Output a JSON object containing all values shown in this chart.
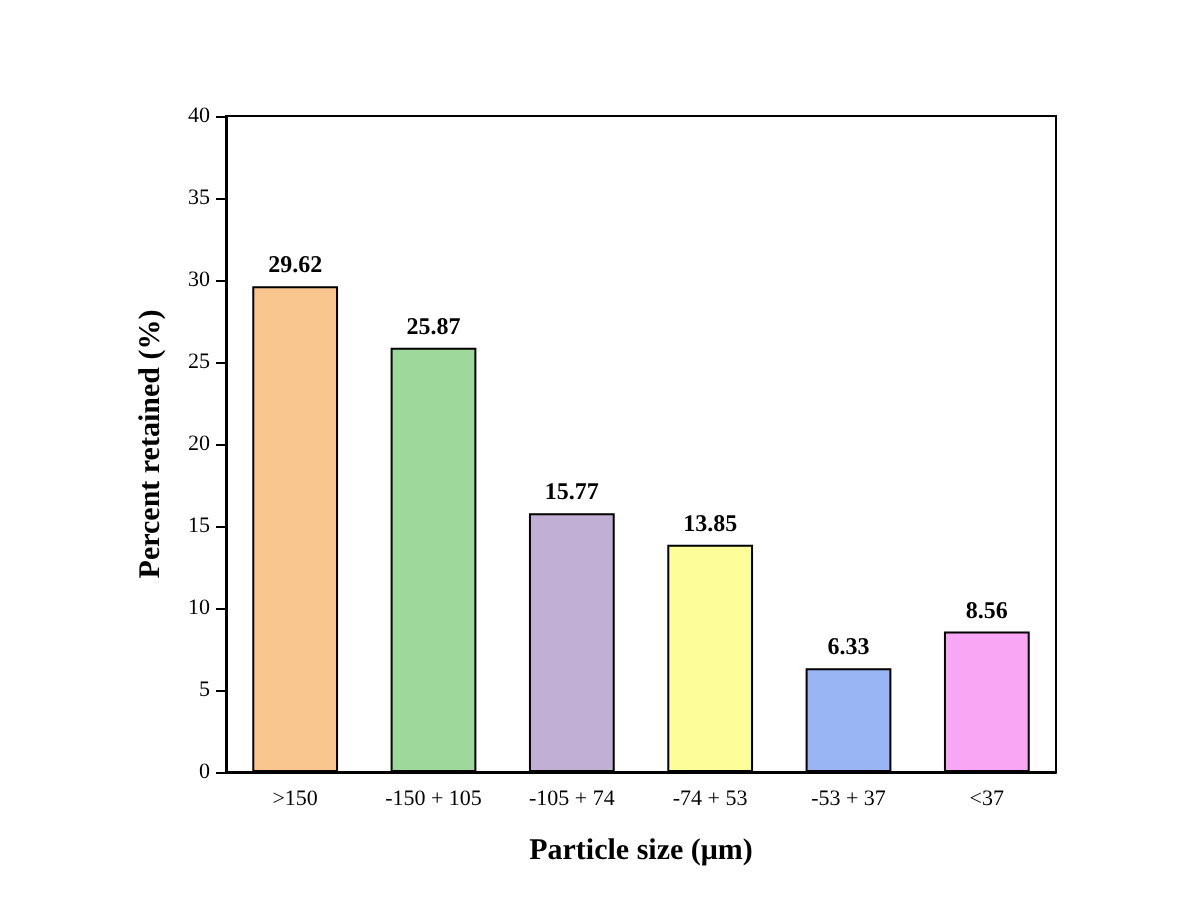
{
  "chart_data": {
    "type": "bar",
    "xlabel": "Particle size (μm)",
    "ylabel": "Percent retained (%)",
    "categories": [
      ">150",
      "-150 + 105",
      "-105 + 74",
      "-74 + 53",
      "-53 + 37",
      "<37"
    ],
    "values": [
      29.62,
      25.87,
      15.77,
      13.85,
      6.33,
      8.56
    ],
    "colors": [
      "#fac690",
      "#9fd89b",
      "#c1afd5",
      "#fdfd9a",
      "#9ab5f3",
      "#f9a7f5"
    ],
    "ylim": [
      0,
      40
    ],
    "yticks": [
      0,
      5,
      10,
      15,
      20,
      25,
      30,
      35,
      40
    ],
    "data_labels": true
  }
}
